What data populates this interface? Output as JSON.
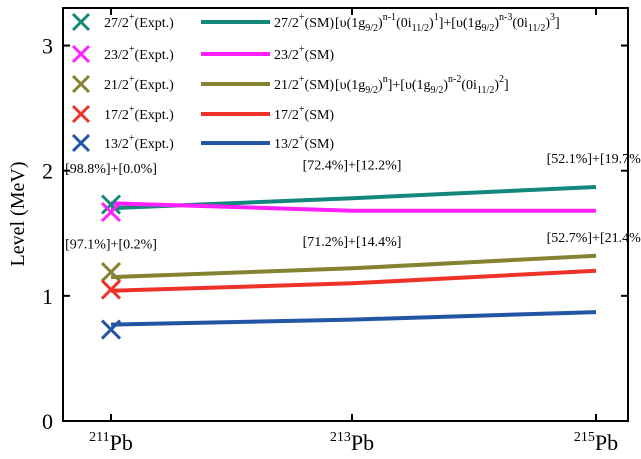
{
  "chart_data": {
    "type": "line",
    "ylabel": "Level (MeV)",
    "ylim": [
      0,
      3.3
    ],
    "yticks": [
      0,
      1,
      2,
      3
    ],
    "categories": [
      {
        "mass": "211",
        "element": "Pb"
      },
      {
        "mass": "213",
        "element": "Pb"
      },
      {
        "mass": "215",
        "element": "Pb"
      }
    ],
    "series": [
      {
        "name": "27/2+(SM)",
        "kind": "SM",
        "color": "#13877b",
        "values": [
          1.7,
          1.78,
          1.87
        ]
      },
      {
        "name": "23/2+(SM)",
        "kind": "SM",
        "color": "#ff1fff",
        "values": [
          1.74,
          1.68,
          1.68
        ]
      },
      {
        "name": "21/2+(SM)",
        "kind": "SM",
        "color": "#858231",
        "values": [
          1.15,
          1.22,
          1.32
        ]
      },
      {
        "name": "17/2+(SM)",
        "kind": "SM",
        "color": "#ef3229",
        "values": [
          1.04,
          1.1,
          1.2
        ]
      },
      {
        "name": "13/2+(SM)",
        "kind": "SM",
        "color": "#2255a4",
        "values": [
          0.77,
          0.81,
          0.87
        ]
      }
    ],
    "experimental": [
      {
        "name": "27/2+(Expt.)",
        "color": "#13877b",
        "x_index": 0,
        "value": 1.73
      },
      {
        "name": "23/2+(Expt.)",
        "color": "#ff1fff",
        "x_index": 0,
        "value": 1.67
      },
      {
        "name": "21/2+(Expt.)",
        "color": "#858231",
        "x_index": 0,
        "value": 1.19
      },
      {
        "name": "17/2+(Expt.)",
        "color": "#ef3229",
        "x_index": 0,
        "value": 1.05
      },
      {
        "name": "13/2+(Expt.)",
        "color": "#2255a4",
        "x_index": 0,
        "value": 0.73
      }
    ],
    "annotations": [
      {
        "text": "[98.8%]+[0.0%]",
        "x_index": 0,
        "y": 1.98
      },
      {
        "text": "[72.4%]+[12.2%]",
        "x_index": 1,
        "y": 2.01
      },
      {
        "text": "[52.1%]+[19.7%]",
        "x_index": 2,
        "y": 2.06
      },
      {
        "text": "[97.1%]+[0.2%]",
        "x_index": 0,
        "y": 1.38
      },
      {
        "text": "[71.2%]+[14.4%]",
        "x_index": 1,
        "y": 1.4
      },
      {
        "text": "[52.7%]+[21.4%]",
        "x_index": 2,
        "y": 1.43
      }
    ],
    "legend": {
      "placement": "top-left",
      "rows": [
        {
          "expt": "27/2+(Expt.)",
          "sm": "27/2+(SM)",
          "color": "#13877b"
        },
        {
          "expt": "23/2+(Expt.)",
          "sm": "23/2+(SM)",
          "color": "#ff1fff"
        },
        {
          "expt": "21/2+(Expt.)",
          "sm": "21/2+(SM)",
          "color": "#858231"
        },
        {
          "expt": "17/2+(Expt.)",
          "sm": "17/2+(SM)",
          "color": "#ef3229"
        },
        {
          "expt": "13/2+(Expt.)",
          "sm": "13/2+(SM)",
          "color": "#2255a4"
        }
      ],
      "config_27": "[υ(1g9/2)n-1(0i11/2)1]+[υ(1g9/2)n-3(0i11/2)3]",
      "config_21": "[υ(1g9/2)n]+[υ(1g9/2)n-2(0i11/2)2]"
    },
    "grid": false
  }
}
